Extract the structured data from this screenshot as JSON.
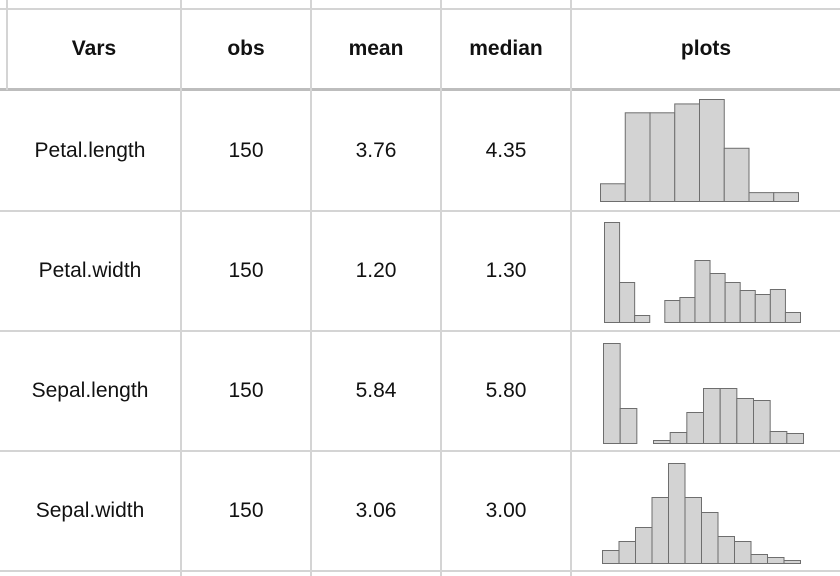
{
  "table": {
    "headers": [
      "Vars",
      "obs",
      "mean",
      "median",
      "plots"
    ],
    "rows": [
      {
        "vars": "Petal.length",
        "obs": "150",
        "mean": "3.76",
        "median": "4.35"
      },
      {
        "vars": "Petal.width",
        "obs": "150",
        "mean": "1.20",
        "median": "1.30"
      },
      {
        "vars": "Sepal.length",
        "obs": "150",
        "mean": "5.84",
        "median": "5.80"
      },
      {
        "vars": "Sepal.width",
        "obs": "150",
        "mean": "3.06",
        "median": "3.00"
      }
    ]
  },
  "chart_data": {
    "type": "table",
    "sparkline_type": "histogram",
    "bar_fill": "#d3d3d3",
    "bar_stroke": "#6e6e6e",
    "histograms": [
      {
        "variable": "Petal.length",
        "counts": [
          2,
          10,
          10,
          11,
          11.5,
          6,
          1,
          1
        ]
      },
      {
        "variable": "Petal.width",
        "counts": [
          10,
          4,
          0.7,
          0,
          2.2,
          2.5,
          6.2,
          4.9,
          4,
          3.2,
          2.8,
          3.3,
          1
        ]
      },
      {
        "variable": "Sepal.length",
        "counts": [
          10,
          3.5,
          0,
          0.3,
          1.1,
          3.1,
          5.5,
          5.5,
          4.5,
          4.3,
          1.2,
          1
        ]
      },
      {
        "variable": "Sepal.width",
        "counts": [
          1.3,
          2.2,
          3.6,
          6.6,
          10,
          6.6,
          5.1,
          2.7,
          2.2,
          0.9,
          0.6,
          0.3
        ]
      }
    ]
  }
}
